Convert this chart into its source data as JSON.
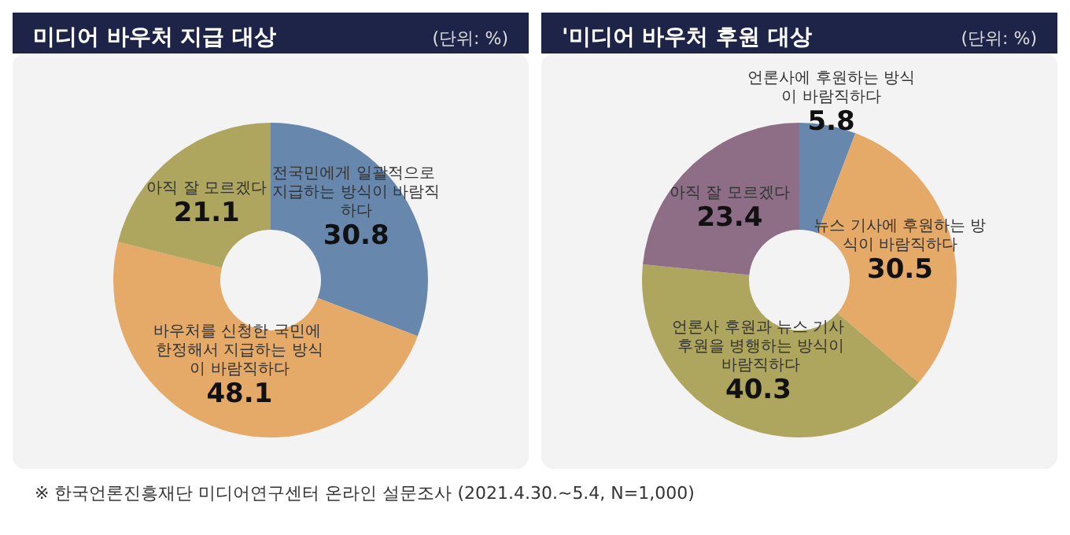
{
  "chart_data": [
    {
      "type": "donut",
      "title": "미디어 바우처 지급 대상",
      "subtitle": "(단위: %)",
      "categories": [
        "전국민에게 일괄적으로 지급하는 방식이 바람직하다",
        "바우처를 신청한 국민에 한정해서 지급하는 방식이 바람직하다",
        "아직 잘 모르겠다"
      ],
      "values": [
        30.8,
        48.1,
        21.1
      ],
      "colors": [
        "#6788ac",
        "#e5a968",
        "#aea65e"
      ],
      "data_labels": true,
      "annotations": [
        "※ 한국언론진흥재단 미디어연구센터 온라인 설문조사 (2021.4.30.~5.4, N=1,000)"
      ]
    },
    {
      "type": "donut",
      "title": "'미디어 바우처 후원 대상",
      "subtitle": "(단위: %)",
      "categories": [
        "언론사에 후원하는 방식이 바람직하다",
        "뉴스 기사에 후원하는 방식이 바람직하다",
        "언론사 후원과 뉴스 기사 후원을 병행하는 방식이 바람직하다",
        "아직 잘 모르겠다"
      ],
      "values": [
        5.8,
        30.5,
        40.3,
        23.4
      ],
      "colors": [
        "#6788ac",
        "#e5a968",
        "#aea65e",
        "#8e6d86"
      ],
      "data_labels": true
    }
  ]
}
